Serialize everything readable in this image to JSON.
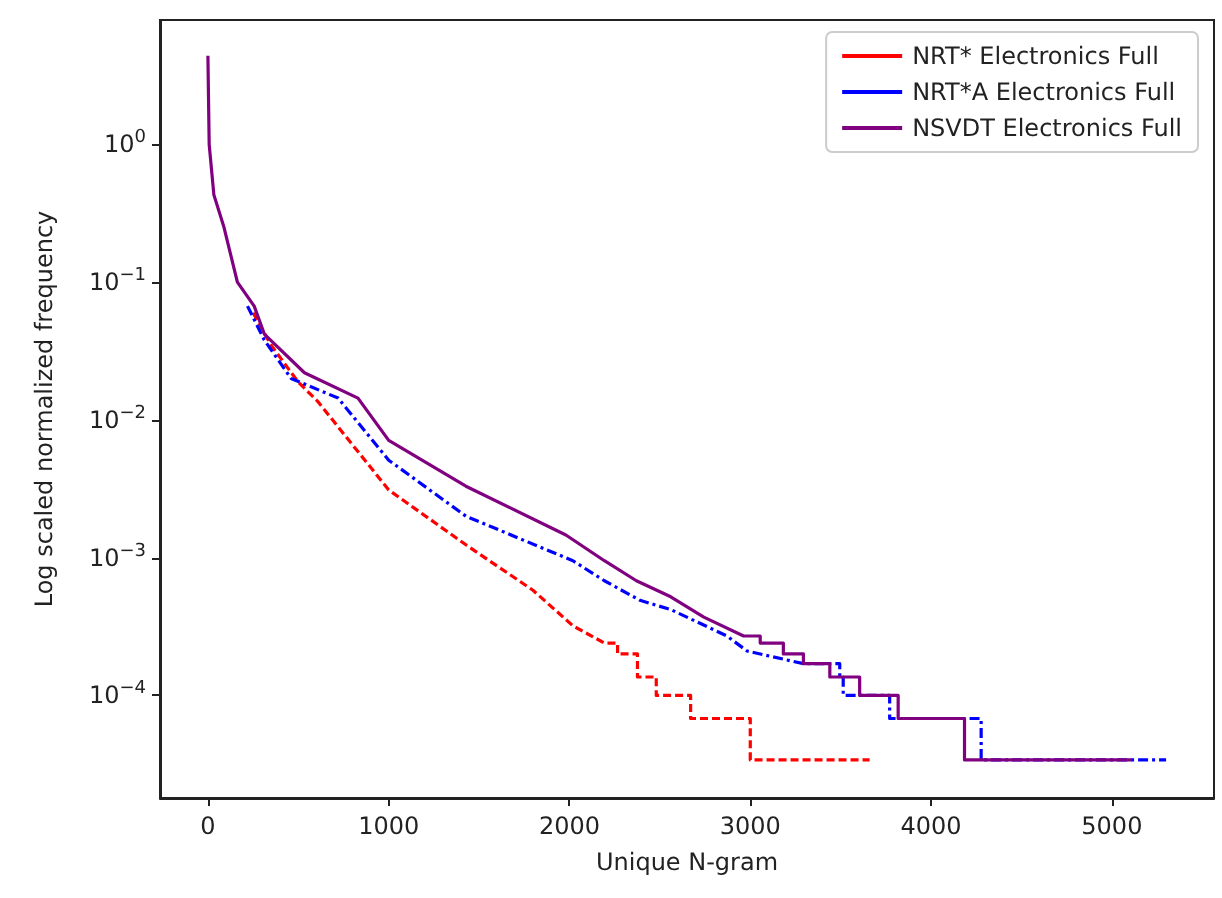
{
  "chart_data": {
    "type": "line",
    "xlabel": "Unique N-gram",
    "ylabel": "Log scaled normalized frequency",
    "xlim": [
      -265,
      5565
    ],
    "xticks": [
      0,
      1000,
      2000,
      3000,
      4000,
      5000
    ],
    "ylim": [
      1.8e-05,
      8
    ],
    "log": "y",
    "yticks": [
      {
        "value": 0.0001,
        "label": "10$^{−4}$"
      },
      {
        "value": 0.001,
        "label": "10$^{−3}$"
      },
      {
        "value": 0.01,
        "label": "10$^{−2}$"
      },
      {
        "value": 0.1,
        "label": "10$^{−1}$"
      },
      {
        "value": 1,
        "label": "10$^{0}$"
      }
    ],
    "grid": false,
    "legend": "top right",
    "series": [
      {
        "name": "NRT* Electronics Full",
        "color": "#ff0000",
        "line_style": "dashed",
        "x": [
          250,
          349,
          497,
          608,
          1000,
          1427,
          1798,
          2019,
          2193,
          2266,
          2266,
          2376,
          2376,
          2480,
          2480,
          2670,
          2670,
          3000,
          3000,
          3660
        ],
        "values": [
          0.06,
          0.035,
          0.019,
          0.0136,
          0.0031,
          0.00124,
          0.00058,
          0.00032,
          0.00024,
          0.00024,
          0.0002,
          0.0002,
          0.000136,
          0.000136,
          0.0001,
          0.0001,
          6.8e-05,
          6.8e-05,
          3.4e-05,
          3.4e-05
        ]
      },
      {
        "name": "NRT*A Electronics Full",
        "color": "#0000ff",
        "line_style": "dashdot",
        "x": [
          219,
          312,
          460,
          720,
          1000,
          1427,
          2019,
          2193,
          2390,
          2560,
          2871,
          2982,
          3294,
          3495,
          3495,
          3514,
          3514,
          3771,
          3771,
          4277,
          4277,
          5300
        ],
        "values": [
          0.067,
          0.038,
          0.02,
          0.0144,
          0.0051,
          0.002,
          0.00095,
          0.00068,
          0.00049,
          0.00042,
          0.00027,
          0.00021,
          0.00017,
          0.00017,
          0.000136,
          0.000136,
          0.0001,
          0.0001,
          6.8e-05,
          6.8e-05,
          3.4e-05,
          3.4e-05
        ]
      },
      {
        "name": "NSVDT Electronics Full",
        "color": "#800080",
        "line_style": "solid",
        "x": [
          0,
          7,
          33,
          89,
          163,
          256,
          312,
          534,
          830,
          1000,
          1427,
          1980,
          2193,
          2370,
          2560,
          2743,
          2963,
          3055,
          3055,
          3183,
          3183,
          3294,
          3294,
          3440,
          3440,
          3605,
          3605,
          3818,
          3818,
          4185,
          4185,
          5110
        ],
        "values": [
          4.4,
          1.0,
          0.43,
          0.25,
          0.1,
          0.067,
          0.042,
          0.022,
          0.0144,
          0.0071,
          0.0033,
          0.00146,
          0.00095,
          0.00068,
          0.00052,
          0.00037,
          0.00027,
          0.00027,
          0.00024,
          0.00024,
          0.0002,
          0.0002,
          0.00017,
          0.00017,
          0.000136,
          0.000136,
          0.0001,
          0.0001,
          6.8e-05,
          6.8e-05,
          3.4e-05,
          3.4e-05
        ]
      }
    ]
  }
}
